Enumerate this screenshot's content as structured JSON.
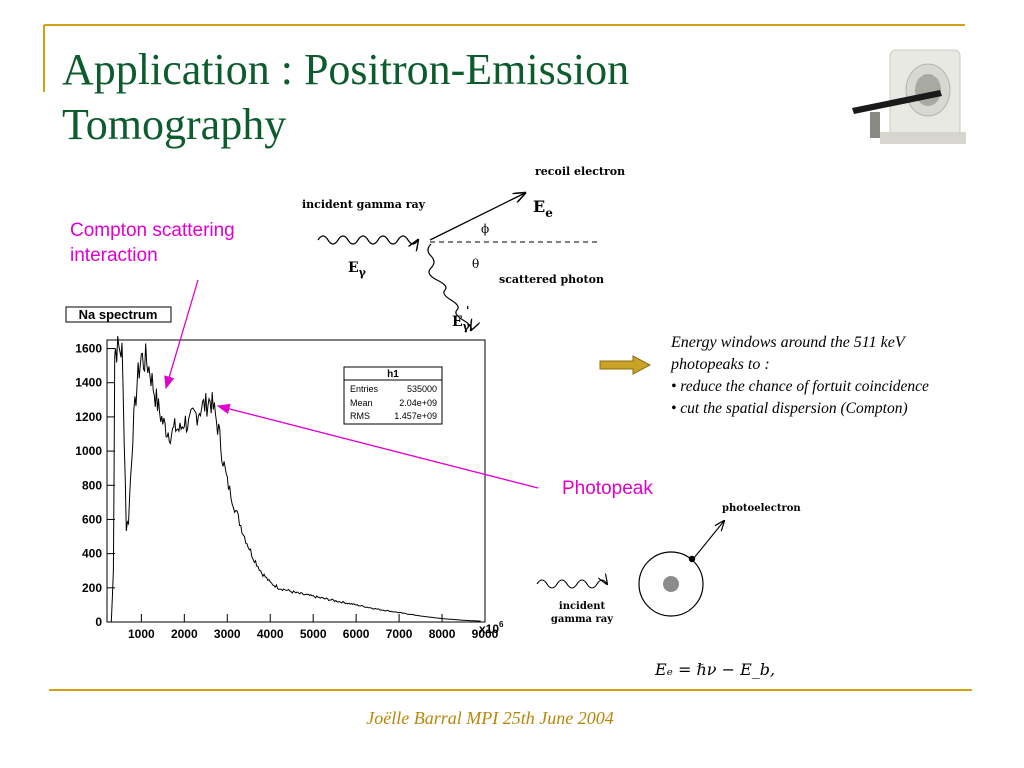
{
  "slide": {
    "title_line1": "Application : Positron-Emission",
    "title_line2": "Tomography",
    "footer": "Joëlle Barral MPI 25th June 2004",
    "accent_color": "#d4a017",
    "title_color": "#0d5c2e",
    "annotation_color": "#e000d0"
  },
  "annotations": {
    "compton_line1": "Compton scattering",
    "compton_line2": "interaction",
    "photopeak": "Photopeak"
  },
  "compton_diagram": {
    "recoil_electron": "recoil electron",
    "incident_gamma_ray": "incident gamma ray",
    "scattered_photon": "scattered photon",
    "phi": "ϕ",
    "theta": "θ",
    "e_gamma": "E",
    "e_gamma_sub": "γ",
    "e_e": "E",
    "e_e_sub": "e",
    "e_gamma_prime": "E",
    "e_gamma_prime_sub": "γ",
    "e_gamma_prime_sup": "'"
  },
  "energy_windows": {
    "line1": "Energy windows around the 511 keV",
    "line2": "photopeaks to :",
    "bullet1": "• reduce the chance of  fortuit coincidence",
    "bullet2": "• cut the spatial dispersion (Compton)"
  },
  "photo_diagram": {
    "photoelectron": "photoelectron",
    "incident_line1": "incident",
    "incident_line2": "gamma ray",
    "formula": "Eₑ = ℏν − E_b,"
  },
  "chart_data": {
    "type": "line",
    "title": "Na spectrum",
    "x_multiplier_label": "x10",
    "x_multiplier_exp": "6",
    "xlim": [
      200,
      9000
    ],
    "ylim": [
      0,
      1650
    ],
    "x_ticks": [
      "1000",
      "2000",
      "3000",
      "4000",
      "5000",
      "6000",
      "7000",
      "8000",
      "9000"
    ],
    "y_ticks": [
      "0",
      "200",
      "400",
      "600",
      "800",
      "1000",
      "1200",
      "1400",
      "1600"
    ],
    "stats": {
      "name": "h1",
      "rows": [
        [
          "Entries",
          "535000"
        ],
        [
          "Mean",
          "2.04e+09"
        ],
        [
          "RMS",
          "1.457e+09"
        ]
      ]
    },
    "x": [
      200,
      300,
      350,
      380,
      400,
      450,
      500,
      550,
      600,
      650,
      700,
      800,
      900,
      1000,
      1050,
      1100,
      1200,
      1300,
      1400,
      1500,
      1600,
      1700,
      1800,
      1900,
      2000,
      2100,
      2200,
      2300,
      2400,
      2500,
      2600,
      2650,
      2700,
      2800,
      2900,
      3000,
      3200,
      3400,
      3600,
      3800,
      4000,
      4200,
      4400,
      4600,
      4800,
      5000,
      5500,
      6000,
      6500,
      7000,
      7500,
      8000,
      8500,
      8900
    ],
    "y": [
      0,
      0,
      300,
      1600,
      1600,
      1600,
      1600,
      1580,
      1100,
      550,
      600,
      1100,
      1400,
      1560,
      1520,
      1540,
      1470,
      1350,
      1250,
      1170,
      1120,
      1100,
      1140,
      1120,
      1180,
      1150,
      1200,
      1220,
      1260,
      1270,
      1300,
      1270,
      1230,
      1120,
      950,
      820,
      650,
      500,
      380,
      290,
      230,
      200,
      185,
      170,
      160,
      150,
      125,
      100,
      75,
      55,
      35,
      20,
      10,
      5
    ]
  }
}
